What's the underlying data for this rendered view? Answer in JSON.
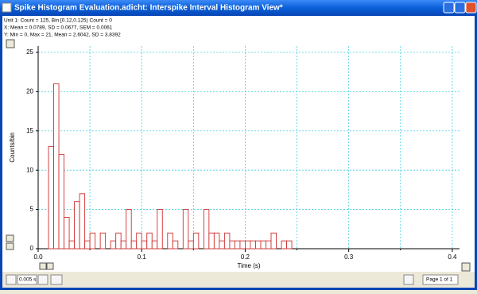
{
  "window": {
    "title": "Spike Histogram Evaluation.adicht: Interspike Interval Histogram View*"
  },
  "info_lines": [
    "Unit 1: Count = 125, Bin [0.12,0.125) Count = 0",
    "X: Mean = 0.0789, SD = 0.0677, SEM = 0.0061",
    "Y: Min = 0, Max = 21, Mean = 2.6042, SD = 3.8392"
  ],
  "status": {
    "bin_width": "0.005 s",
    "page": "Page 1 of 1"
  },
  "chart_data": {
    "type": "histogram",
    "xlabel": "Time (s)",
    "ylabel": "Counts/bin",
    "color": "#d03030",
    "bins": [
      0.01,
      0.015,
      0.02,
      0.025,
      0.03,
      0.035,
      0.04,
      0.045,
      0.05,
      0.055,
      0.06,
      0.065,
      0.07,
      0.075,
      0.08,
      0.085,
      0.09,
      0.095,
      0.1,
      0.105,
      0.11,
      0.115,
      0.12,
      0.125,
      0.13,
      0.135,
      0.14,
      0.145,
      0.15,
      0.155,
      0.16,
      0.165,
      0.17,
      0.175,
      0.18,
      0.185,
      0.19,
      0.195,
      0.2,
      0.205,
      0.21,
      0.215,
      0.22,
      0.225,
      0.23,
      0.235,
      0.24,
      0.245
    ],
    "counts": [
      13,
      21,
      12,
      4,
      1,
      6,
      7,
      1,
      2,
      0,
      2,
      0,
      1,
      2,
      1,
      5,
      1,
      2,
      1,
      2,
      1,
      5,
      0,
      2,
      1,
      0,
      5,
      1,
      2,
      0,
      5,
      2,
      2,
      1,
      2,
      1,
      1,
      1,
      1,
      1,
      1,
      1,
      1,
      2,
      0,
      1,
      1
    ],
    "xlim": [
      0,
      0.407
    ],
    "ylim": [
      0,
      25.8
    ],
    "xticks": [
      {
        "value": 0,
        "label": "0.0"
      },
      0.1,
      0.2,
      0.3,
      0.4
    ],
    "xminorticks": [
      0.05,
      0.15,
      0.25,
      0.35
    ],
    "yticks": [
      0,
      5,
      10,
      15,
      20,
      25
    ],
    "grid": true
  }
}
